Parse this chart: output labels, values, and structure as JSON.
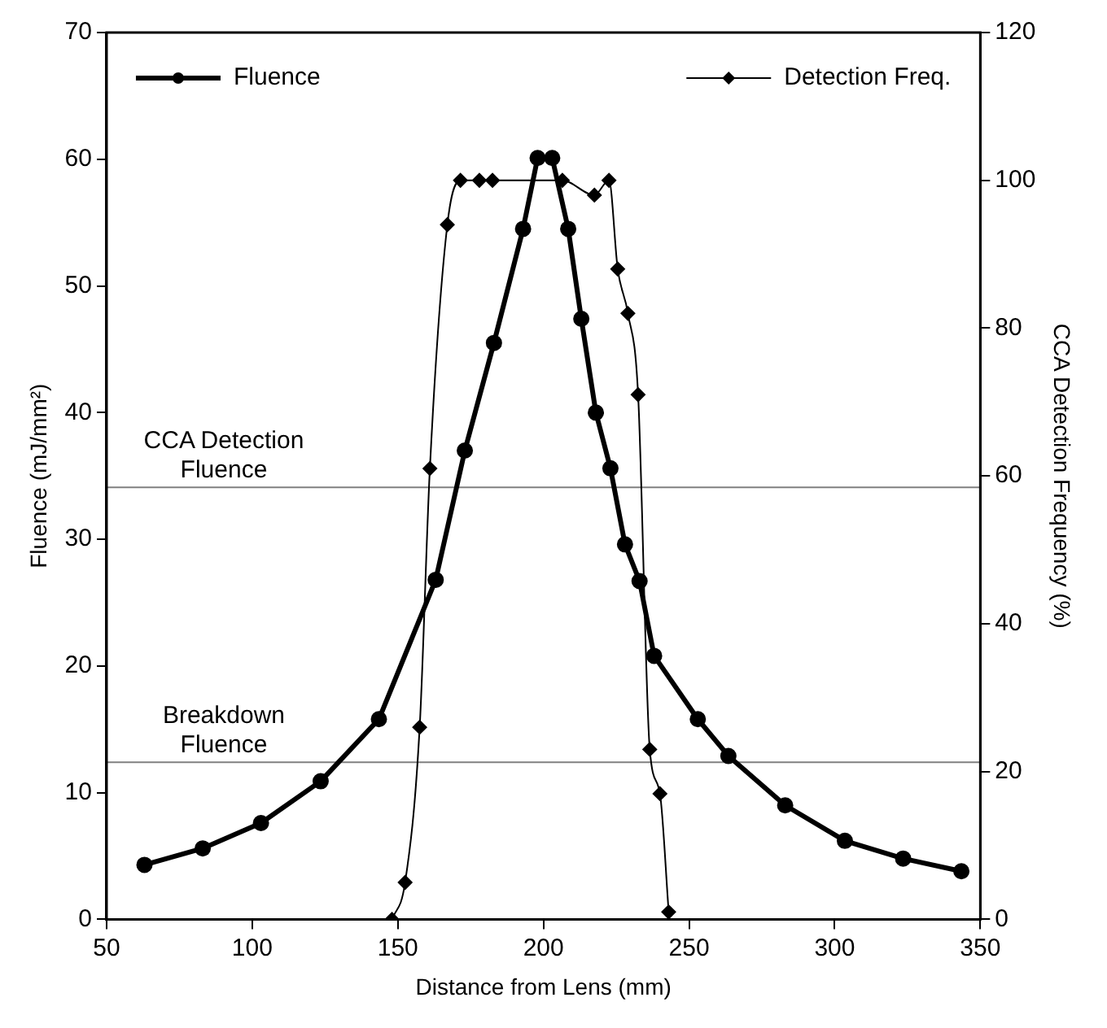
{
  "chart_data": {
    "type": "line",
    "xlabel": "Distance from Lens (mm)",
    "ylabel": "Fluence (mJ/mm²)",
    "y2label": "CCA Detection Frequency (%)",
    "series": [
      {
        "name": "Fluence",
        "color": "#000000",
        "marker": "circle",
        "line_style": "solid",
        "x": [
          63,
          83,
          103,
          123.5,
          143.5,
          163,
          173,
          183,
          193,
          198,
          203,
          208.5,
          213,
          218,
          223,
          228,
          233,
          238,
          253,
          263.5,
          283,
          303.5,
          323.5,
          343.5
        ],
        "values": [
          4.3,
          5.6,
          7.6,
          10.9,
          15.8,
          26.8,
          37,
          45.5,
          54.5,
          60.1,
          60.1,
          54.5,
          47.4,
          40,
          35.6,
          29.6,
          26.7,
          20.8,
          15.8,
          12.9,
          9,
          6.2,
          4.8,
          3.8
        ]
      },
      {
        "name": "Detection Freq.",
        "color": "#000000",
        "marker": "diamond",
        "line_style": "solid",
        "axis": "y2",
        "x": [
          148,
          152.5,
          157.5,
          161,
          167,
          171.5,
          178,
          182.5,
          206.5,
          217.5,
          222.5,
          225.5,
          229,
          232.5,
          236.5,
          240,
          243
        ],
        "values": [
          0,
          5,
          26,
          61,
          94,
          100,
          100,
          100,
          100,
          98,
          100,
          88,
          82,
          71,
          23,
          17,
          1
        ]
      }
    ],
    "ref_lines": [
      {
        "axis": "y",
        "value": 34.1,
        "label": "CCA Detection Fluence",
        "color": "#808080"
      },
      {
        "axis": "y",
        "value": 12.4,
        "label": "Breakdown Fluence",
        "color": "#808080"
      }
    ],
    "xlim": [
      50,
      350
    ],
    "xticks": [
      50,
      100,
      150,
      200,
      250,
      300,
      350
    ],
    "ylim": [
      0,
      70
    ],
    "yticks": [
      0,
      10,
      20,
      30,
      40,
      50,
      60,
      70
    ],
    "y2lim": [
      0,
      120
    ],
    "y2ticks": [
      0,
      20,
      40,
      60,
      80,
      100,
      120
    ],
    "grid": false,
    "legend": "top"
  }
}
